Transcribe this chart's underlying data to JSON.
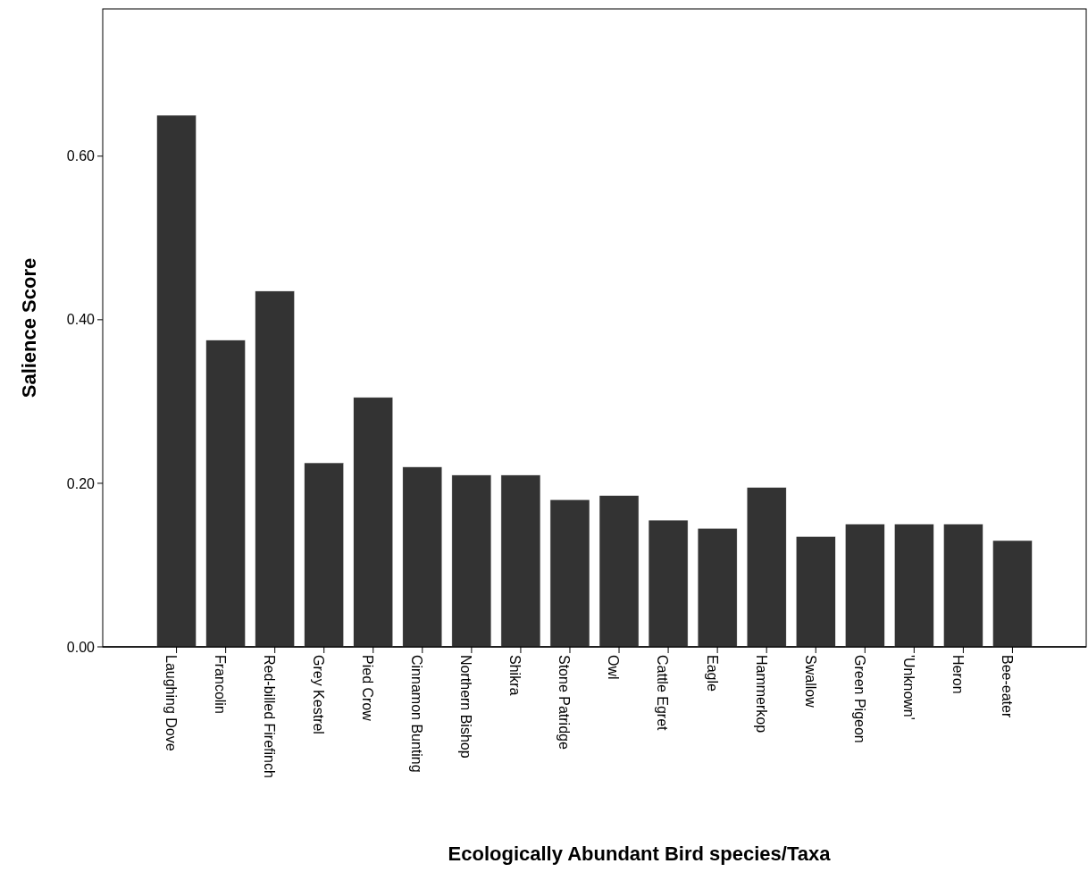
{
  "chart_data": {
    "type": "bar",
    "xlabel": "Ecologically Abundant Bird species/Taxa",
    "ylabel": "Salience Score",
    "categories": [
      "Laughing Dove",
      "Francolin",
      "Red-billed Firefinch",
      "Grey Kestrel",
      "Pied Crow",
      "Cinnamon Bunting",
      "Northern Bishop",
      "Shikra",
      "Stone Patridge",
      "Owl",
      "Cattle Egret",
      "Eagle",
      "Hammerkop",
      "Swallow",
      "Green Pigeon",
      "'Unknown'",
      "Heron",
      "Bee-eater"
    ],
    "values": [
      0.65,
      0.375,
      0.435,
      0.225,
      0.305,
      0.22,
      0.21,
      0.21,
      0.18,
      0.185,
      0.155,
      0.145,
      0.195,
      0.135,
      0.15,
      0.15,
      0.15,
      0.13
    ],
    "color": "#333333",
    "ylim": [
      0,
      0.78
    ],
    "yticks": [
      {
        "value": 0,
        "label": "0.00"
      },
      {
        "value": 0.2,
        "label": "0.20"
      },
      {
        "value": 0.4,
        "label": "0.40"
      },
      {
        "value": 0.6,
        "label": "0.60"
      }
    ],
    "grid": false
  }
}
